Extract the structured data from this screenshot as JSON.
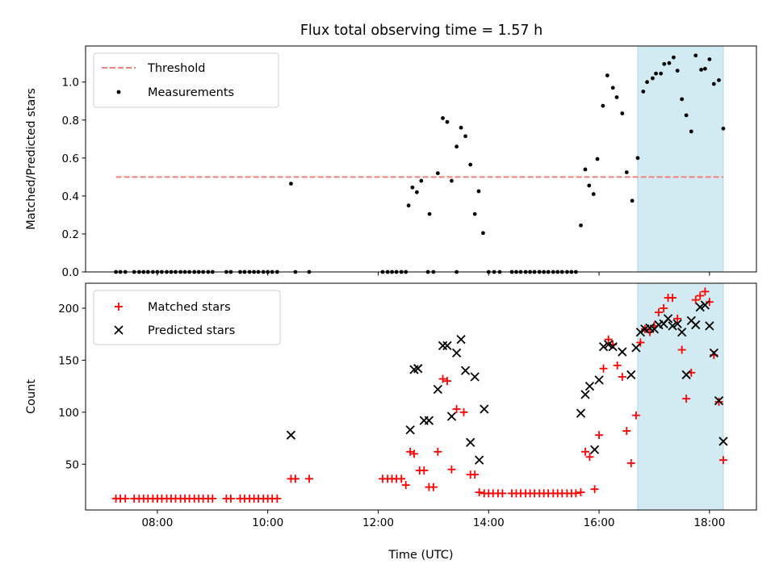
{
  "chart_data": {
    "title": "Flux total observing time = 1.57 h",
    "xlabel": "Time (UTC)",
    "x_ticks": [
      "08:00",
      "10:00",
      "12:00",
      "14:00",
      "16:00",
      "18:00"
    ],
    "x_tick_hours": [
      8,
      10,
      12,
      14,
      16,
      18
    ],
    "xlim_hours": [
      6.7,
      18.85
    ],
    "highlight_span_hours": [
      16.7,
      18.25
    ],
    "colors": {
      "threshold": "#f08080",
      "measurement": "#000000",
      "matched": "#ff0000",
      "predicted": "#000000",
      "highlight": "#add8e6"
    },
    "panels": [
      {
        "type": "scatter",
        "ylabel": "Matched/Predicted stars",
        "ylim": [
          0,
          1.19
        ],
        "yticks": [
          "0.0",
          "0.2",
          "0.4",
          "0.6",
          "0.8",
          "1.0"
        ],
        "ytick_values": [
          0,
          0.2,
          0.4,
          0.6,
          0.8,
          1.0
        ],
        "legend": {
          "placement": "upper-left",
          "entries": [
            {
              "label": "Threshold",
              "kind": "dashed-line"
            },
            {
              "label": "Measurements",
              "kind": "dot"
            }
          ]
        },
        "threshold": {
          "value": 0.5,
          "x_range_hours": [
            7.25,
            18.25
          ]
        },
        "measurements": [
          [
            7.25,
            0
          ],
          [
            7.33,
            0
          ],
          [
            7.42,
            0
          ],
          [
            7.58,
            0
          ],
          [
            7.67,
            0
          ],
          [
            7.75,
            0
          ],
          [
            7.83,
            0
          ],
          [
            7.92,
            0
          ],
          [
            8.0,
            0
          ],
          [
            8.08,
            0
          ],
          [
            8.17,
            0
          ],
          [
            8.25,
            0
          ],
          [
            8.33,
            0
          ],
          [
            8.42,
            0
          ],
          [
            8.5,
            0
          ],
          [
            8.58,
            0
          ],
          [
            8.67,
            0
          ],
          [
            8.75,
            0
          ],
          [
            8.83,
            0
          ],
          [
            8.92,
            0
          ],
          [
            9.0,
            0
          ],
          [
            9.25,
            0
          ],
          [
            9.33,
            0
          ],
          [
            9.5,
            0
          ],
          [
            9.58,
            0
          ],
          [
            9.67,
            0
          ],
          [
            9.75,
            0
          ],
          [
            9.83,
            0
          ],
          [
            9.92,
            0
          ],
          [
            10.0,
            0
          ],
          [
            10.08,
            0
          ],
          [
            10.17,
            0
          ],
          [
            10.42,
            0.465
          ],
          [
            10.5,
            0
          ],
          [
            10.75,
            0
          ],
          [
            12.08,
            0
          ],
          [
            12.17,
            0
          ],
          [
            12.25,
            0
          ],
          [
            12.33,
            0
          ],
          [
            12.42,
            0
          ],
          [
            12.5,
            0
          ],
          [
            12.55,
            0.35
          ],
          [
            12.62,
            0.445
          ],
          [
            12.7,
            0.42
          ],
          [
            12.78,
            0.48
          ],
          [
            12.93,
            0.305
          ],
          [
            13.08,
            0.52
          ],
          [
            13.17,
            0.81
          ],
          [
            13.25,
            0.79
          ],
          [
            13.33,
            0.48
          ],
          [
            13.42,
            0.66
          ],
          [
            13.5,
            0.76
          ],
          [
            13.58,
            0.715
          ],
          [
            13.67,
            0.565
          ],
          [
            13.75,
            0.305
          ],
          [
            13.82,
            0.425
          ],
          [
            13.9,
            0.205
          ],
          [
            12.9,
            0
          ],
          [
            13.0,
            0
          ],
          [
            13.42,
            0
          ],
          [
            14.0,
            0
          ],
          [
            14.1,
            0
          ],
          [
            14.2,
            0
          ],
          [
            14.42,
            0
          ],
          [
            14.5,
            0
          ],
          [
            14.58,
            0
          ],
          [
            14.67,
            0
          ],
          [
            14.75,
            0
          ],
          [
            14.83,
            0
          ],
          [
            14.92,
            0
          ],
          [
            15.0,
            0
          ],
          [
            15.08,
            0
          ],
          [
            15.17,
            0
          ],
          [
            15.25,
            0
          ],
          [
            15.33,
            0
          ],
          [
            15.42,
            0
          ],
          [
            15.5,
            0
          ],
          [
            15.58,
            0
          ],
          [
            15.67,
            0.245
          ],
          [
            15.75,
            0.54
          ],
          [
            15.82,
            0.455
          ],
          [
            15.9,
            0.41
          ],
          [
            15.97,
            0.595
          ],
          [
            16.07,
            0.875
          ],
          [
            16.15,
            1.035
          ],
          [
            16.25,
            0.97
          ],
          [
            16.32,
            0.92
          ],
          [
            16.42,
            0.835
          ],
          [
            16.5,
            0.525
          ],
          [
            16.6,
            0.375
          ],
          [
            16.7,
            0.6
          ],
          [
            16.8,
            0.95
          ],
          [
            16.87,
            1.0
          ],
          [
            16.97,
            1.02
          ],
          [
            17.03,
            1.045
          ],
          [
            17.12,
            1.045
          ],
          [
            17.18,
            1.095
          ],
          [
            17.27,
            1.1
          ],
          [
            17.35,
            1.13
          ],
          [
            17.42,
            1.06
          ],
          [
            17.5,
            0.91
          ],
          [
            17.58,
            0.825
          ],
          [
            17.67,
            0.74
          ],
          [
            17.75,
            1.14
          ],
          [
            17.85,
            1.065
          ],
          [
            17.92,
            1.07
          ],
          [
            18.0,
            1.12
          ],
          [
            18.08,
            0.99
          ],
          [
            18.17,
            1.01
          ],
          [
            18.25,
            0.755
          ]
        ]
      },
      {
        "type": "scatter",
        "ylabel": "Count",
        "ylim": [
          6,
          224
        ],
        "yticks": [
          "50",
          "100",
          "150",
          "200"
        ],
        "ytick_values": [
          50,
          100,
          150,
          200
        ],
        "legend": {
          "placement": "upper-left",
          "entries": [
            {
              "label": "Matched stars",
              "kind": "plus"
            },
            {
              "label": "Predicted stars",
              "kind": "cross"
            }
          ]
        },
        "matched": [
          [
            7.25,
            17
          ],
          [
            7.33,
            17
          ],
          [
            7.42,
            17
          ],
          [
            7.58,
            17
          ],
          [
            7.67,
            17
          ],
          [
            7.75,
            17
          ],
          [
            7.83,
            17
          ],
          [
            7.92,
            17
          ],
          [
            8.0,
            17
          ],
          [
            8.08,
            17
          ],
          [
            8.17,
            17
          ],
          [
            8.25,
            17
          ],
          [
            8.33,
            17
          ],
          [
            8.42,
            17
          ],
          [
            8.5,
            17
          ],
          [
            8.58,
            17
          ],
          [
            8.67,
            17
          ],
          [
            8.75,
            17
          ],
          [
            8.83,
            17
          ],
          [
            8.92,
            17
          ],
          [
            9.0,
            17
          ],
          [
            9.25,
            17
          ],
          [
            9.33,
            17
          ],
          [
            9.5,
            17
          ],
          [
            9.58,
            17
          ],
          [
            9.67,
            17
          ],
          [
            9.75,
            17
          ],
          [
            9.83,
            17
          ],
          [
            9.92,
            17
          ],
          [
            10.0,
            17
          ],
          [
            10.08,
            17
          ],
          [
            10.17,
            17
          ],
          [
            10.42,
            36
          ],
          [
            10.5,
            36
          ],
          [
            10.75,
            36
          ],
          [
            12.08,
            36
          ],
          [
            12.17,
            36
          ],
          [
            12.25,
            36
          ],
          [
            12.33,
            36
          ],
          [
            12.42,
            36
          ],
          [
            12.5,
            30
          ],
          [
            12.58,
            62
          ],
          [
            12.65,
            60
          ],
          [
            12.75,
            44
          ],
          [
            12.83,
            44
          ],
          [
            12.92,
            28
          ],
          [
            13.0,
            28
          ],
          [
            13.08,
            62
          ],
          [
            13.17,
            132
          ],
          [
            13.25,
            130
          ],
          [
            13.33,
            45
          ],
          [
            13.42,
            103
          ],
          [
            13.55,
            100
          ],
          [
            13.67,
            40
          ],
          [
            13.75,
            40
          ],
          [
            13.83,
            23
          ],
          [
            13.92,
            22
          ],
          [
            14.0,
            22
          ],
          [
            14.08,
            22
          ],
          [
            14.17,
            22
          ],
          [
            14.25,
            22
          ],
          [
            14.42,
            22
          ],
          [
            14.5,
            22
          ],
          [
            14.58,
            22
          ],
          [
            14.67,
            22
          ],
          [
            14.75,
            22
          ],
          [
            14.83,
            22
          ],
          [
            14.92,
            22
          ],
          [
            15.0,
            22
          ],
          [
            15.08,
            22
          ],
          [
            15.17,
            22
          ],
          [
            15.25,
            22
          ],
          [
            15.33,
            22
          ],
          [
            15.42,
            22
          ],
          [
            15.5,
            22
          ],
          [
            15.58,
            22
          ],
          [
            15.67,
            23
          ],
          [
            15.75,
            62
          ],
          [
            15.83,
            57
          ],
          [
            15.92,
            26
          ],
          [
            16.0,
            78
          ],
          [
            16.08,
            142
          ],
          [
            16.17,
            170
          ],
          [
            16.25,
            165
          ],
          [
            16.33,
            145
          ],
          [
            16.42,
            134
          ],
          [
            16.5,
            82
          ],
          [
            16.58,
            51
          ],
          [
            16.67,
            97
          ],
          [
            16.75,
            167
          ],
          [
            16.83,
            180
          ],
          [
            16.92,
            177
          ],
          [
            17.0,
            183
          ],
          [
            17.08,
            196
          ],
          [
            17.17,
            200
          ],
          [
            17.25,
            210
          ],
          [
            17.33,
            210
          ],
          [
            17.42,
            190
          ],
          [
            17.5,
            160
          ],
          [
            17.58,
            113
          ],
          [
            17.67,
            138
          ],
          [
            17.75,
            208
          ],
          [
            17.83,
            212
          ],
          [
            17.92,
            216
          ],
          [
            18.0,
            206
          ],
          [
            18.08,
            155
          ],
          [
            18.17,
            110
          ],
          [
            18.25,
            54
          ]
        ],
        "predicted": [
          [
            10.42,
            78
          ],
          [
            12.58,
            83
          ],
          [
            12.65,
            141
          ],
          [
            12.72,
            142
          ],
          [
            12.83,
            92
          ],
          [
            12.92,
            92
          ],
          [
            13.08,
            122
          ],
          [
            13.17,
            164
          ],
          [
            13.25,
            164
          ],
          [
            13.33,
            96
          ],
          [
            13.42,
            157
          ],
          [
            13.5,
            170
          ],
          [
            13.58,
            140
          ],
          [
            13.67,
            71
          ],
          [
            13.75,
            134
          ],
          [
            13.83,
            54
          ],
          [
            13.92,
            103
          ],
          [
            15.67,
            99
          ],
          [
            15.75,
            117
          ],
          [
            15.83,
            125
          ],
          [
            15.92,
            64
          ],
          [
            16.0,
            131
          ],
          [
            16.08,
            163
          ],
          [
            16.17,
            165
          ],
          [
            16.25,
            163
          ],
          [
            16.42,
            158
          ],
          [
            16.58,
            136
          ],
          [
            16.67,
            162
          ],
          [
            16.75,
            177
          ],
          [
            16.83,
            180
          ],
          [
            16.92,
            181
          ],
          [
            17.0,
            180
          ],
          [
            17.08,
            184
          ],
          [
            17.17,
            185
          ],
          [
            17.25,
            190
          ],
          [
            17.33,
            183
          ],
          [
            17.42,
            185
          ],
          [
            17.5,
            177
          ],
          [
            17.58,
            136
          ],
          [
            17.67,
            188
          ],
          [
            17.75,
            184
          ],
          [
            17.83,
            201
          ],
          [
            17.92,
            203
          ],
          [
            18.0,
            183
          ],
          [
            18.08,
            157
          ],
          [
            18.17,
            111
          ],
          [
            18.25,
            72
          ]
        ]
      }
    ]
  }
}
